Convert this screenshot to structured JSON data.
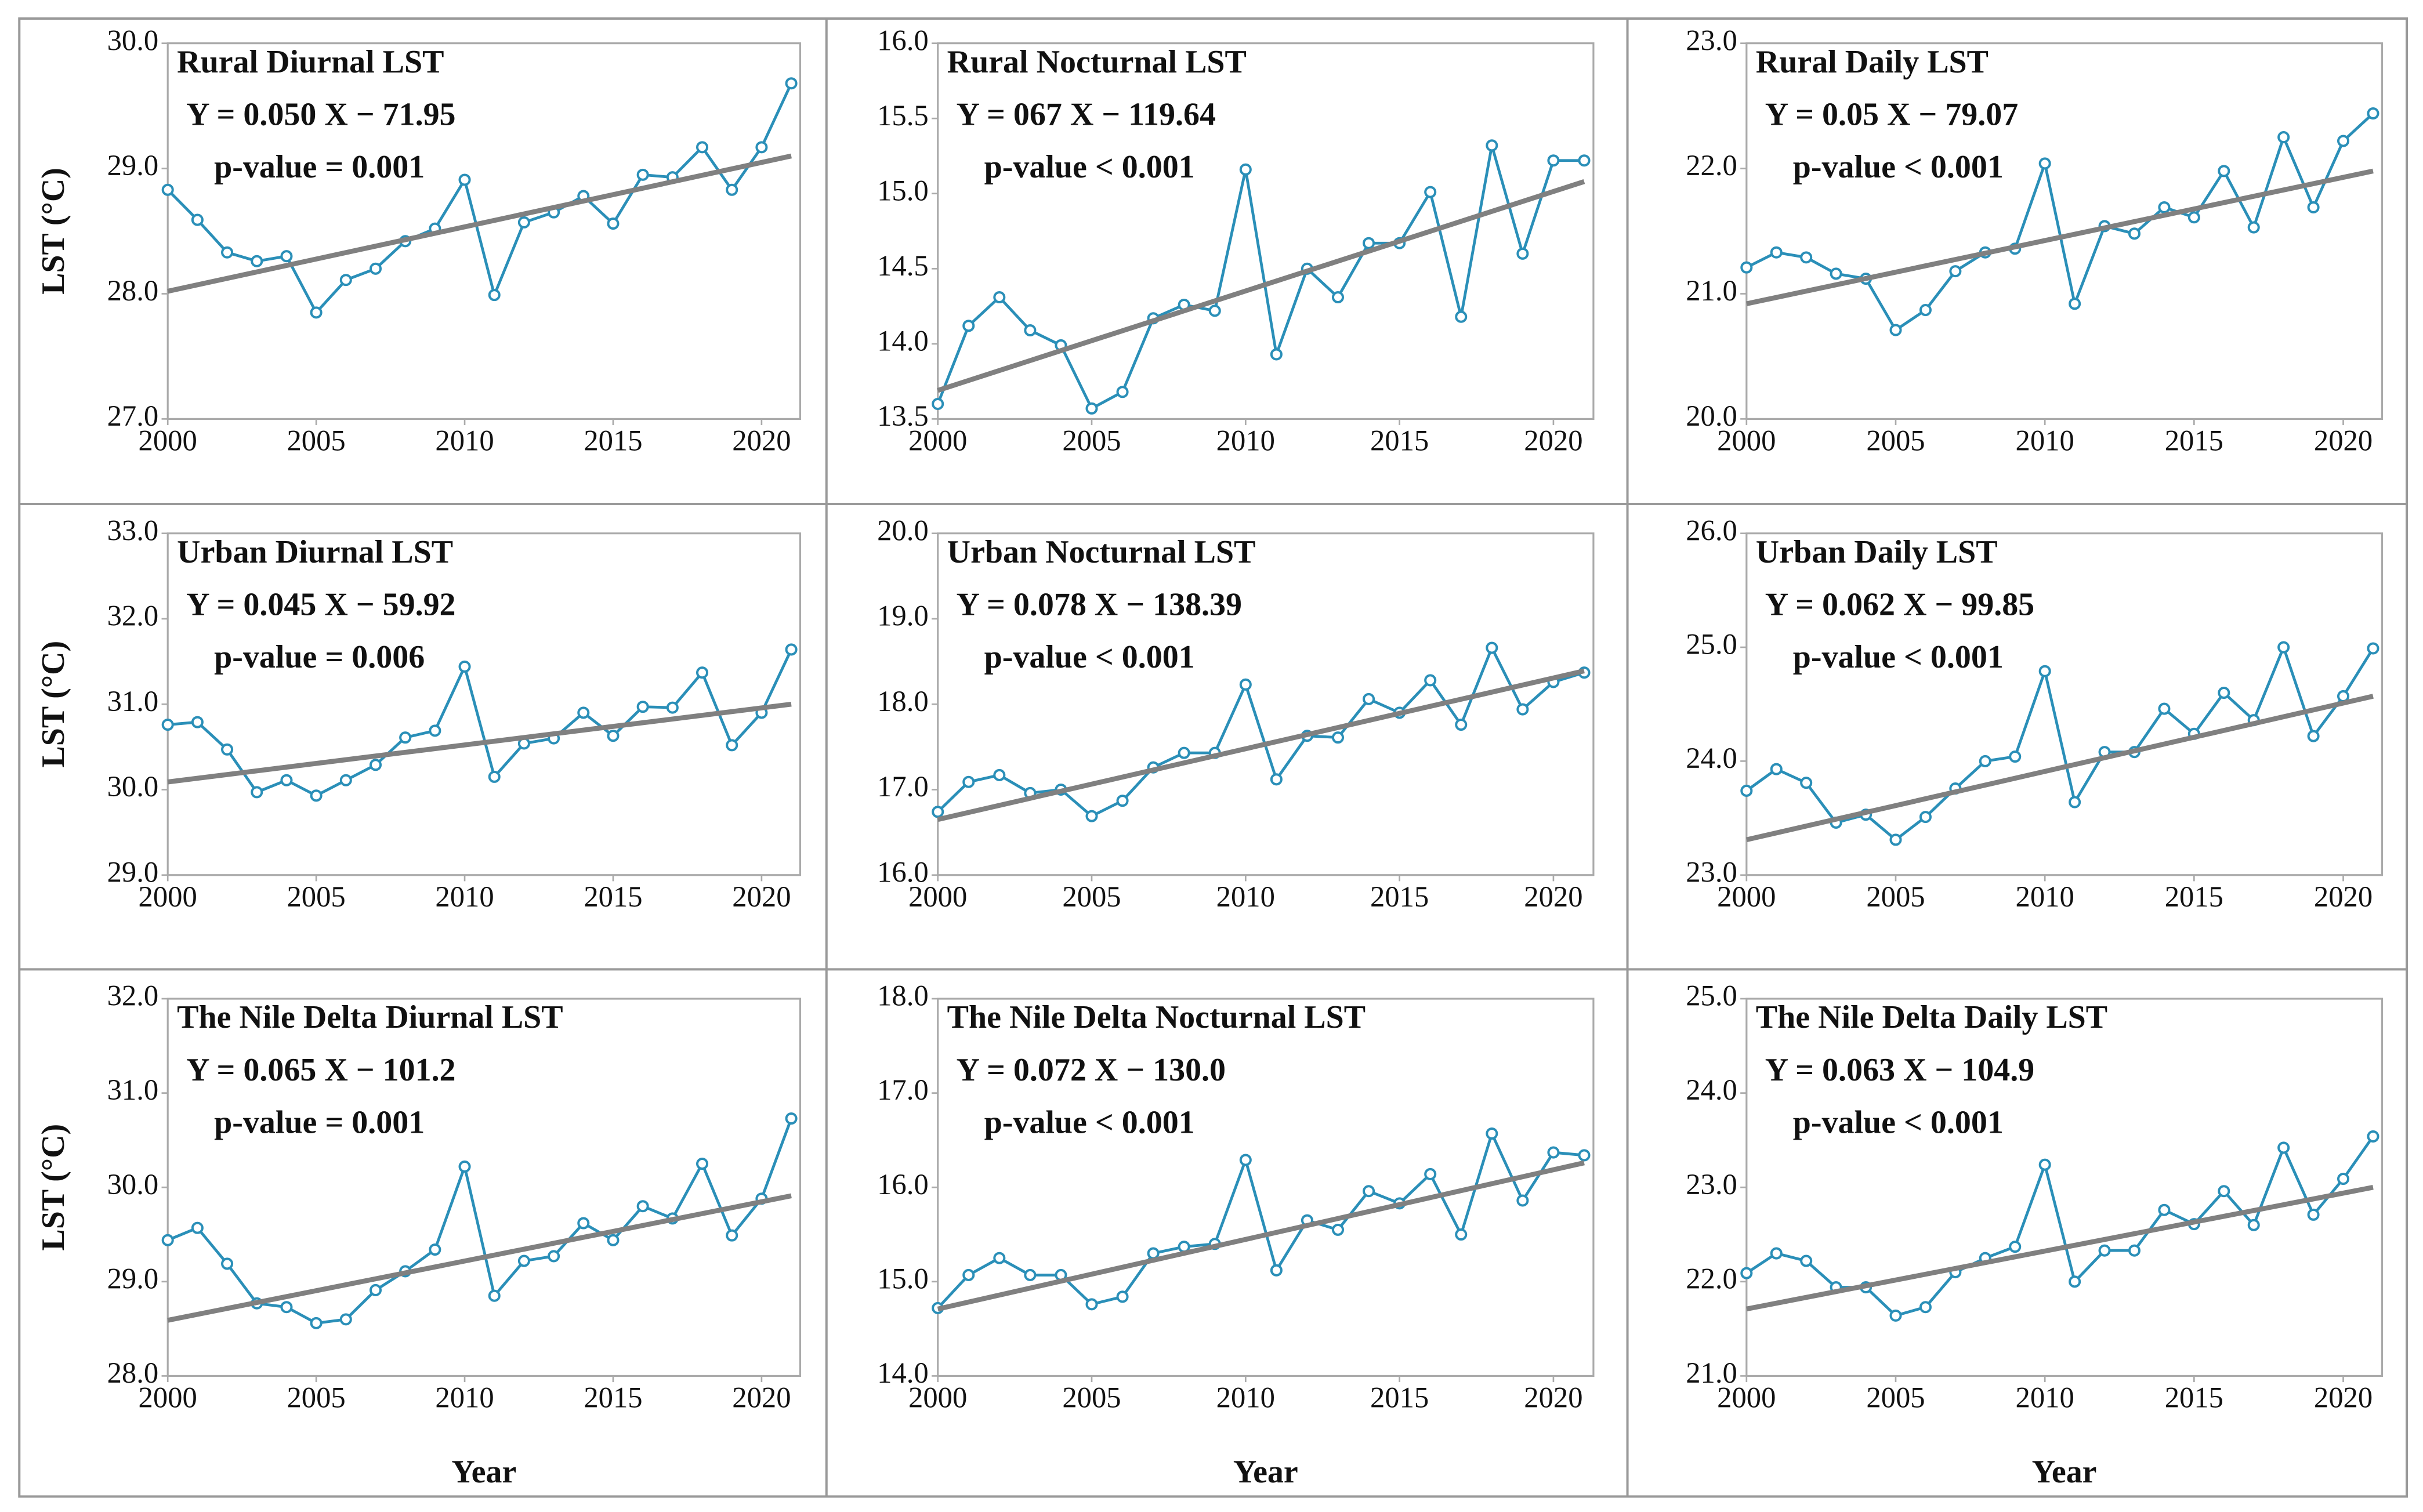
{
  "chart_data": [
    {
      "type": "line",
      "title": "Rural Diurnal LST",
      "annotations": [
        "Y = 0.050 X − 71.95",
        "p-value = 0.001"
      ],
      "y_label": "LST (°C)",
      "x": [
        2000,
        2001,
        2002,
        2003,
        2004,
        2005,
        2006,
        2007,
        2008,
        2009,
        2010,
        2011,
        2012,
        2013,
        2014,
        2015,
        2016,
        2017,
        2018,
        2019,
        2020,
        2021
      ],
      "series": [
        {
          "color": "#2a8fb8",
          "markers": true,
          "values": [
            28.83,
            28.59,
            28.33,
            28.26,
            28.3,
            27.85,
            28.11,
            28.2,
            28.42,
            28.52,
            28.91,
            27.99,
            28.57,
            28.65,
            28.78,
            28.56,
            28.95,
            28.93,
            29.17,
            28.83,
            29.17,
            29.68
          ]
        },
        {
          "color": "#808080",
          "markers": false,
          "x": [
            2000,
            2021
          ],
          "values": [
            28.02,
            29.1
          ]
        }
      ],
      "xlim": [
        2000,
        2021.3
      ],
      "xticks": [
        2000,
        2005,
        2010,
        2015,
        2020
      ],
      "ylim": [
        27,
        30
      ],
      "yticks": [
        {
          "value": 27,
          "label": "27.0"
        },
        {
          "value": 28,
          "label": "28.0"
        },
        {
          "value": 29,
          "label": "29.0"
        },
        {
          "value": 30,
          "label": "30.0"
        }
      ]
    },
    {
      "type": "line",
      "title": "Rural Nocturnal LST",
      "annotations": [
        "Y = 067 X − 119.64",
        "p-value < 0.001"
      ],
      "x": [
        2000,
        2001,
        2002,
        2003,
        2004,
        2005,
        2006,
        2007,
        2008,
        2009,
        2010,
        2011,
        2012,
        2013,
        2014,
        2015,
        2016,
        2017,
        2018,
        2019,
        2020,
        2021
      ],
      "series": [
        {
          "color": "#2a8fb8",
          "markers": true,
          "values": [
            13.6,
            14.12,
            14.31,
            14.09,
            13.99,
            13.57,
            13.68,
            14.17,
            14.26,
            14.22,
            15.16,
            13.93,
            14.5,
            14.31,
            14.67,
            14.67,
            15.01,
            14.18,
            15.32,
            14.6,
            15.22,
            15.22
          ]
        },
        {
          "color": "#808080",
          "markers": false,
          "x": [
            2000,
            2021
          ],
          "values": [
            13.69,
            15.08
          ]
        }
      ],
      "xlim": [
        2000,
        2021.3
      ],
      "xticks": [
        2000,
        2005,
        2010,
        2015,
        2020
      ],
      "ylim": [
        13.5,
        16
      ],
      "yticks": [
        13.5,
        {
          "value": 14,
          "label": "14.0"
        },
        14.5,
        {
          "value": 15,
          "label": "15.0"
        },
        15.5,
        {
          "value": 16,
          "label": "16.0"
        }
      ]
    },
    {
      "type": "line",
      "title": "Rural Daily LST",
      "annotations": [
        "Y = 0.05 X − 79.07",
        "p-value < 0.001"
      ],
      "x": [
        2000,
        2001,
        2002,
        2003,
        2004,
        2005,
        2006,
        2007,
        2008,
        2009,
        2010,
        2011,
        2012,
        2013,
        2014,
        2015,
        2016,
        2017,
        2018,
        2019,
        2020,
        2021
      ],
      "series": [
        {
          "color": "#2a8fb8",
          "markers": true,
          "values": [
            21.21,
            21.33,
            21.29,
            21.16,
            21.12,
            20.71,
            20.87,
            21.18,
            21.33,
            21.36,
            22.04,
            20.92,
            21.54,
            21.48,
            21.69,
            21.61,
            21.98,
            21.53,
            22.25,
            21.69,
            22.22,
            22.44
          ]
        },
        {
          "color": "#808080",
          "markers": false,
          "x": [
            2000,
            2021
          ],
          "values": [
            20.92,
            21.98
          ]
        }
      ],
      "xlim": [
        2000,
        2021.3
      ],
      "xticks": [
        2000,
        2005,
        2010,
        2015,
        2020
      ],
      "ylim": [
        20,
        23
      ],
      "yticks": [
        {
          "value": 20,
          "label": "20.0"
        },
        {
          "value": 21,
          "label": "21.0"
        },
        {
          "value": 22,
          "label": "22.0"
        },
        {
          "value": 23,
          "label": "23.0"
        }
      ]
    },
    {
      "type": "line",
      "title": "Urban Diurnal LST",
      "annotations": [
        "Y = 0.045 X − 59.92",
        "p-value = 0.006"
      ],
      "y_label": "LST (°C)",
      "x": [
        2000,
        2001,
        2002,
        2003,
        2004,
        2005,
        2006,
        2007,
        2008,
        2009,
        2010,
        2011,
        2012,
        2013,
        2014,
        2015,
        2016,
        2017,
        2018,
        2019,
        2020,
        2021
      ],
      "series": [
        {
          "color": "#2a8fb8",
          "markers": true,
          "values": [
            30.76,
            30.79,
            30.47,
            29.97,
            30.11,
            29.93,
            30.11,
            30.29,
            30.61,
            30.69,
            31.44,
            30.15,
            30.54,
            30.6,
            30.9,
            30.63,
            30.97,
            30.96,
            31.37,
            30.52,
            30.9,
            31.64
          ]
        },
        {
          "color": "#808080",
          "markers": false,
          "x": [
            2000,
            2021
          ],
          "values": [
            30.09,
            31.0
          ]
        }
      ],
      "xlim": [
        2000,
        2021.3
      ],
      "xticks": [
        2000,
        2005,
        2010,
        2015,
        2020
      ],
      "ylim": [
        29,
        33
      ],
      "yticks": [
        {
          "value": 29,
          "label": "29.0"
        },
        {
          "value": 30,
          "label": "30.0"
        },
        {
          "value": 31,
          "label": "31.0"
        },
        {
          "value": 32,
          "label": "32.0"
        },
        {
          "value": 33,
          "label": "33.0"
        }
      ]
    },
    {
      "type": "line",
      "title": "Urban Nocturnal LST",
      "annotations": [
        "Y = 0.078 X − 138.39",
        "p-value < 0.001"
      ],
      "x": [
        2000,
        2001,
        2002,
        2003,
        2004,
        2005,
        2006,
        2007,
        2008,
        2009,
        2010,
        2011,
        2012,
        2013,
        2014,
        2015,
        2016,
        2017,
        2018,
        2019,
        2020,
        2021
      ],
      "series": [
        {
          "color": "#2a8fb8",
          "markers": true,
          "values": [
            16.74,
            17.09,
            17.17,
            16.96,
            17.0,
            16.69,
            16.87,
            17.26,
            17.43,
            17.43,
            18.23,
            17.12,
            17.63,
            17.61,
            18.06,
            17.9,
            18.28,
            17.76,
            18.66,
            17.94,
            18.26,
            18.37
          ]
        },
        {
          "color": "#808080",
          "markers": false,
          "x": [
            2000,
            2021
          ],
          "values": [
            16.65,
            18.39
          ]
        }
      ],
      "xlim": [
        2000,
        2021.3
      ],
      "xticks": [
        2000,
        2005,
        2010,
        2015,
        2020
      ],
      "ylim": [
        16,
        20
      ],
      "yticks": [
        {
          "value": 16,
          "label": "16.0"
        },
        {
          "value": 17,
          "label": "17.0"
        },
        {
          "value": 18,
          "label": "18.0"
        },
        {
          "value": 19,
          "label": "19.0"
        },
        {
          "value": 20,
          "label": "20.0"
        }
      ]
    },
    {
      "type": "line",
      "title": "Urban Daily LST",
      "annotations": [
        "Y = 0.062 X − 99.85",
        "p-value < 0.001"
      ],
      "x": [
        2000,
        2001,
        2002,
        2003,
        2004,
        2005,
        2006,
        2007,
        2008,
        2009,
        2010,
        2011,
        2012,
        2013,
        2014,
        2015,
        2016,
        2017,
        2018,
        2019,
        2020,
        2021
      ],
      "series": [
        {
          "color": "#2a8fb8",
          "markers": true,
          "values": [
            23.74,
            23.93,
            23.81,
            23.46,
            23.53,
            23.31,
            23.51,
            23.76,
            24.0,
            24.04,
            24.79,
            23.64,
            24.08,
            24.08,
            24.46,
            24.24,
            24.6,
            24.36,
            25.0,
            24.22,
            24.57,
            24.99
          ]
        },
        {
          "color": "#808080",
          "markers": false,
          "x": [
            2000,
            2021
          ],
          "values": [
            23.31,
            24.57
          ]
        }
      ],
      "xlim": [
        2000,
        2021.3
      ],
      "xticks": [
        2000,
        2005,
        2010,
        2015,
        2020
      ],
      "ylim": [
        23,
        26
      ],
      "yticks": [
        {
          "value": 23,
          "label": "23.0"
        },
        {
          "value": 24,
          "label": "24.0"
        },
        {
          "value": 25,
          "label": "25.0"
        },
        {
          "value": 26,
          "label": "26.0"
        }
      ]
    },
    {
      "type": "line",
      "title": "The Nile Delta Diurnal LST",
      "annotations": [
        "Y = 0.065 X − 101.2",
        "p-value = 0.001"
      ],
      "y_label": "LST (°C)",
      "x_label": "Year",
      "x": [
        2000,
        2001,
        2002,
        2003,
        2004,
        2005,
        2006,
        2007,
        2008,
        2009,
        2010,
        2011,
        2012,
        2013,
        2014,
        2015,
        2016,
        2017,
        2018,
        2019,
        2020,
        2021
      ],
      "series": [
        {
          "color": "#2a8fb8",
          "markers": true,
          "values": [
            29.44,
            29.57,
            29.19,
            28.77,
            28.73,
            28.56,
            28.6,
            28.91,
            29.11,
            29.34,
            30.22,
            28.85,
            29.22,
            29.27,
            29.62,
            29.44,
            29.8,
            29.67,
            30.25,
            29.49,
            29.88,
            30.73
          ]
        },
        {
          "color": "#808080",
          "markers": false,
          "x": [
            2000,
            2021
          ],
          "values": [
            28.59,
            29.91
          ]
        }
      ],
      "xlim": [
        2000,
        2021.3
      ],
      "xticks": [
        2000,
        2005,
        2010,
        2015,
        2020
      ],
      "ylim": [
        28,
        32
      ],
      "yticks": [
        {
          "value": 28,
          "label": "28.0"
        },
        {
          "value": 29,
          "label": "29.0"
        },
        {
          "value": 30,
          "label": "30.0"
        },
        {
          "value": 31,
          "label": "31.0"
        },
        {
          "value": 32,
          "label": "32.0"
        }
      ]
    },
    {
      "type": "line",
      "title": "The Nile Delta Nocturnal LST",
      "annotations": [
        "Y = 0.072 X − 130.0",
        "p-value < 0.001"
      ],
      "x_label": "Year",
      "x": [
        2000,
        2001,
        2002,
        2003,
        2004,
        2005,
        2006,
        2007,
        2008,
        2009,
        2010,
        2011,
        2012,
        2013,
        2014,
        2015,
        2016,
        2017,
        2018,
        2019,
        2020,
        2021
      ],
      "series": [
        {
          "color": "#2a8fb8",
          "markers": true,
          "values": [
            14.72,
            15.07,
            15.25,
            15.07,
            15.07,
            14.76,
            14.84,
            15.3,
            15.37,
            15.4,
            16.29,
            15.12,
            15.65,
            15.55,
            15.96,
            15.83,
            16.14,
            15.5,
            16.57,
            15.86,
            16.37,
            16.34
          ]
        },
        {
          "color": "#808080",
          "markers": false,
          "x": [
            2000,
            2021
          ],
          "values": [
            14.71,
            16.26
          ]
        }
      ],
      "xlim": [
        2000,
        2021.3
      ],
      "xticks": [
        2000,
        2005,
        2010,
        2015,
        2020
      ],
      "ylim": [
        14,
        18
      ],
      "yticks": [
        {
          "value": 14,
          "label": "14.0"
        },
        {
          "value": 15,
          "label": "15.0"
        },
        {
          "value": 16,
          "label": "16.0"
        },
        {
          "value": 17,
          "label": "17.0"
        },
        {
          "value": 18,
          "label": "18.0"
        }
      ]
    },
    {
      "type": "line",
      "title": "The Nile Delta Daily LST",
      "annotations": [
        "Y = 0.063 X − 104.9",
        "p-value < 0.001"
      ],
      "x_label": "Year",
      "x": [
        2000,
        2001,
        2002,
        2003,
        2004,
        2005,
        2006,
        2007,
        2008,
        2009,
        2010,
        2011,
        2012,
        2013,
        2014,
        2015,
        2016,
        2017,
        2018,
        2019,
        2020,
        2021
      ],
      "series": [
        {
          "color": "#2a8fb8",
          "markers": true,
          "values": [
            22.09,
            22.3,
            22.22,
            21.94,
            21.94,
            21.64,
            21.73,
            22.1,
            22.25,
            22.37,
            23.24,
            22.0,
            22.33,
            22.33,
            22.76,
            22.61,
            22.96,
            22.6,
            23.42,
            22.71,
            23.09,
            23.54
          ]
        },
        {
          "color": "#808080",
          "markers": false,
          "x": [
            2000,
            2021
          ],
          "values": [
            21.71,
            23.0
          ]
        }
      ],
      "xlim": [
        2000,
        2021.3
      ],
      "xticks": [
        2000,
        2005,
        2010,
        2015,
        2020
      ],
      "ylim": [
        21,
        25
      ],
      "yticks": [
        {
          "value": 21,
          "label": "21.0"
        },
        {
          "value": 22,
          "label": "22.0"
        },
        {
          "value": 23,
          "label": "23.0"
        },
        {
          "value": 24,
          "label": "24.0"
        },
        {
          "value": 25,
          "label": "25.0"
        }
      ]
    }
  ]
}
